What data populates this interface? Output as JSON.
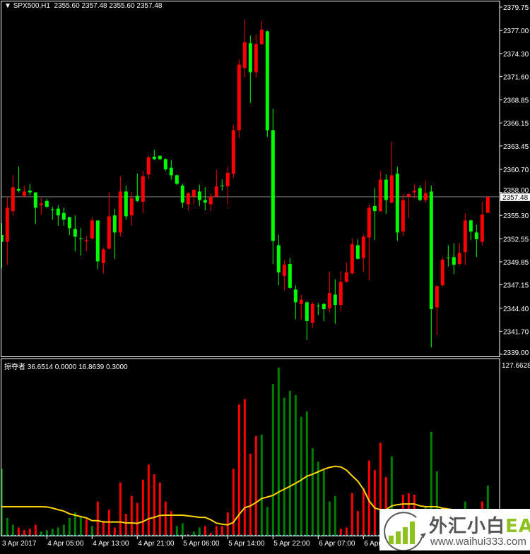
{
  "header": {
    "symbol": "SPX500,H1",
    "ohlc": "2355.60 2357.48 2355.60 2357.48"
  },
  "indicator_header": {
    "name": "掠夺者",
    "values": "36.6514 0.0000 16.8639 0.3000"
  },
  "colors": {
    "bull": "#ff0000",
    "bear": "#00ff00",
    "hist_red": "#ff0000",
    "hist_green": "#008000",
    "ma": "#ffd700",
    "level": "#40e0e0",
    "frame": "#ffffff",
    "bid_line": "#808080"
  },
  "price_axis": {
    "ticks": [
      "2379.75",
      "2377.00",
      "2374.30",
      "2371.60",
      "2368.85",
      "2366.15",
      "2363.45",
      "2360.70",
      "2358.00",
      "2355.30",
      "2352.55",
      "2349.85",
      "2347.15",
      "2344.40",
      "2341.70",
      "2339.00"
    ],
    "current_price": "2357.48",
    "range": [
      2339.0,
      2379.75
    ]
  },
  "indicator_axis": {
    "max_label": "127.6628",
    "range": [
      0,
      127.6628
    ],
    "level": 0.3
  },
  "time_axis": {
    "labels": [
      "3 Apr 2017",
      "4 Apr 05:00",
      "4 Apr 13:00",
      "4 Apr 21:00",
      "5 Apr 06:00",
      "5 Apr 14:00",
      "5 Apr 22:00",
      "6 Apr 07:00",
      "6 Apr"
    ],
    "label_every_bars": 8
  },
  "chart_data": {
    "type": "candlestick",
    "candles_ohlc": [
      [
        2353.0,
        2354.4,
        2349.1,
        2352.2
      ],
      [
        2352.2,
        2357.4,
        2349.5,
        2356.2
      ],
      [
        2355.8,
        2360.0,
        2355.3,
        2358.6
      ],
      [
        2358.4,
        2361.0,
        2358.0,
        2358.2
      ],
      [
        2357.6,
        2358.8,
        2357.4,
        2358.1
      ],
      [
        2358.2,
        2359.0,
        2357.7,
        2358.0
      ],
      [
        2358.0,
        2358.0,
        2354.3,
        2356.2
      ],
      [
        2356.5,
        2357.3,
        2355.4,
        2356.7
      ],
      [
        2357.0,
        2357.2,
        2356.2,
        2356.3
      ],
      [
        2356.0,
        2356.3,
        2354.8,
        2355.9
      ],
      [
        2356.1,
        2356.5,
        2354.1,
        2355.3
      ],
      [
        2355.6,
        2356.2,
        2354.1,
        2354.8
      ],
      [
        2355.1,
        2355.1,
        2353.0,
        2353.8
      ],
      [
        2353.7,
        2355.3,
        2351.1,
        2352.8
      ],
      [
        2352.6,
        2353.8,
        2350.6,
        2352.55
      ],
      [
        2352.3,
        2352.9,
        2351.1,
        2352.4
      ],
      [
        2352.6,
        2355.1,
        2352.5,
        2354.7
      ],
      [
        2354.7,
        2354.7,
        2349.0,
        2349.9
      ],
      [
        2349.7,
        2351.5,
        2348.5,
        2351.3
      ],
      [
        2351.4,
        2358.0,
        2351.3,
        2355.2
      ],
      [
        2355.3,
        2356.1,
        2350.2,
        2353.3
      ],
      [
        2353.3,
        2359.9,
        2352.8,
        2358.1
      ],
      [
        2358.1,
        2358.8,
        2354.8,
        2355.2
      ],
      [
        2355.3,
        2358.0,
        2354.1,
        2357.3
      ],
      [
        2357.6,
        2360.2,
        2356.9,
        2357.0
      ],
      [
        2356.9,
        2360.5,
        2355.6,
        2359.9
      ],
      [
        2360.1,
        2362.3,
        2359.6,
        2362.1
      ],
      [
        2362.2,
        2363.0,
        2361.8,
        2361.9
      ],
      [
        2362.3,
        2362.3,
        2361.8,
        2361.9
      ],
      [
        2361.9,
        2362.0,
        2360.5,
        2360.7
      ],
      [
        2360.9,
        2361.8,
        2359.5,
        2360.0
      ],
      [
        2360.0,
        2360.1,
        2358.9,
        2359.0
      ],
      [
        2358.8,
        2359.0,
        2356.2,
        2356.8
      ],
      [
        2356.6,
        2358.0,
        2355.9,
        2357.9
      ],
      [
        2357.5,
        2358.4,
        2356.6,
        2358.3
      ],
      [
        2358.1,
        2358.9,
        2356.4,
        2357.1
      ],
      [
        2357.1,
        2358.6,
        2355.9,
        2356.8
      ],
      [
        2356.6,
        2357.9,
        2355.8,
        2357.5
      ],
      [
        2357.5,
        2360.6,
        2357.4,
        2358.7
      ],
      [
        2358.8,
        2359.5,
        2358.2,
        2358.75
      ],
      [
        2358.7,
        2361.0,
        2356.6,
        2360.3
      ],
      [
        2360.2,
        2365.9,
        2359.7,
        2365.3
      ],
      [
        2365.3,
        2373.6,
        2364.4,
        2373.0
      ],
      [
        2372.6,
        2378.3,
        2371.5,
        2375.6
      ],
      [
        2375.5,
        2376.4,
        2368.5,
        2372.1
      ],
      [
        2372.1,
        2376.5,
        2371.5,
        2375.4
      ],
      [
        2375.4,
        2378.1,
        2375.3,
        2377.1
      ],
      [
        2376.9,
        2377.0,
        2364.5,
        2365.3
      ],
      [
        2365.3,
        2367.8,
        2349.6,
        2352.3
      ],
      [
        2351.8,
        2353.0,
        2347.1,
        2348.6
      ],
      [
        2348.2,
        2350.0,
        2346.5,
        2349.5
      ],
      [
        2349.6,
        2350.3,
        2346.7,
        2346.8
      ],
      [
        2346.6,
        2347.1,
        2343.1,
        2345.1
      ],
      [
        2344.9,
        2346.0,
        2343.1,
        2345.4
      ],
      [
        2345.1,
        2345.2,
        2340.7,
        2342.9
      ],
      [
        2342.7,
        2345.1,
        2342.1,
        2344.9
      ],
      [
        2344.7,
        2345.0,
        2343.6,
        2344.65
      ],
      [
        2344.9,
        2345.0,
        2342.9,
        2344.3
      ],
      [
        2344.4,
        2348.7,
        2343.9,
        2346.2
      ],
      [
        2346.0,
        2347.8,
        2342.6,
        2344.8
      ],
      [
        2344.8,
        2348.7,
        2344.1,
        2347.5
      ],
      [
        2347.5,
        2349.8,
        2347.4,
        2348.6
      ],
      [
        2348.5,
        2352.6,
        2348.4,
        2351.9
      ],
      [
        2351.8,
        2352.5,
        2350.1,
        2350.2
      ],
      [
        2350.3,
        2353.0,
        2348.7,
        2352.8
      ],
      [
        2352.7,
        2356.6,
        2347.7,
        2356.2
      ],
      [
        2356.4,
        2358.5,
        2352.4,
        2355.8
      ],
      [
        2355.8,
        2360.5,
        2355.7,
        2359.5
      ],
      [
        2359.5,
        2360.1,
        2355.5,
        2357.1
      ],
      [
        2356.8,
        2363.9,
        2356.7,
        2360.0
      ],
      [
        2360.2,
        2361.0,
        2352.3,
        2353.3
      ],
      [
        2353.4,
        2357.8,
        2352.9,
        2357.1
      ],
      [
        2357.5,
        2357.9,
        2355.0,
        2357.8
      ],
      [
        2358.0,
        2358.9,
        2357.3,
        2358.2
      ],
      [
        2358.5,
        2358.8,
        2357.0,
        2357.1
      ],
      [
        2357.1,
        2359.4,
        2356.8,
        2357.9
      ],
      [
        2358.1,
        2358.8,
        2339.8,
        2344.3
      ],
      [
        2344.5,
        2347.1,
        2341.3,
        2347.0
      ],
      [
        2347.1,
        2350.4,
        2347.0,
        2350.1
      ],
      [
        2350.35,
        2351.8,
        2349.3,
        2350.3
      ],
      [
        2350.4,
        2352.0,
        2348.4,
        2349.5
      ],
      [
        2349.6,
        2352.1,
        2349.4,
        2350.9
      ],
      [
        2351.0,
        2355.5,
        2349.5,
        2354.7
      ],
      [
        2354.7,
        2354.8,
        2352.4,
        2353.4
      ],
      [
        2353.3,
        2354.2,
        2350.4,
        2352.5
      ],
      [
        2352.2,
        2356.9,
        2351.8,
        2355.4
      ],
      [
        2355.6,
        2357.48,
        2355.6,
        2357.48
      ]
    ],
    "histogram": {
      "values": [
        49,
        13,
        8,
        6,
        4,
        5,
        8,
        3,
        4,
        5,
        6,
        8,
        13,
        17,
        14,
        12,
        7,
        25,
        11,
        19,
        6,
        39,
        16,
        29,
        24,
        41,
        52,
        45,
        39,
        25,
        18,
        7,
        9,
        1,
        3,
        6,
        7,
        2,
        7,
        7,
        17,
        49,
        96,
        100,
        60,
        73,
        74,
        21,
        111,
        123,
        101,
        106,
        103,
        87,
        91,
        64,
        54,
        48,
        25,
        29,
        5,
        6,
        31,
        18,
        35,
        55,
        48,
        68,
        43,
        58,
        12,
        30,
        31,
        30,
        8,
        21,
        76,
        47,
        20,
        10,
        10,
        9,
        25,
        10,
        9,
        25,
        36.6514
      ],
      "colors": "gggrrrrggggggggrgrrrrrrrrrrrrrrggrggrrrrrrrrrrggggggggggggggrrrrrrrrrgrrrrrgggggrrgrrr"
    },
    "ma_line": [
      21.2,
      21.2,
      21.2,
      21.2,
      21.2,
      21.2,
      21.2,
      21.2,
      21,
      20.2,
      19,
      18,
      16,
      15,
      14,
      13,
      11,
      11,
      10,
      10,
      10,
      10,
      9.3,
      9.3,
      9,
      10.3,
      12.4,
      13.4,
      14.8,
      15,
      15,
      15,
      15,
      14.5,
      14,
      13.4,
      13.4,
      11.6,
      9.2,
      8.4,
      7.9,
      9.7,
      15.5,
      20.4,
      21.8,
      24.3,
      27.2,
      28.3,
      29.5,
      32,
      34,
      36.1,
      38.4,
      40.8,
      43.5,
      45,
      46.8,
      48.6,
      50,
      50.8,
      50.3,
      48,
      43.8,
      39.9,
      34,
      25.5,
      20.2,
      19,
      19,
      21.8,
      22.7,
      23.2,
      23.2,
      23.2,
      21.8,
      21.2,
      21.2,
      21.2,
      20.1,
      19.5,
      19,
      18.5,
      18,
      17.6,
      17.3,
      17,
      16.8639
    ]
  },
  "watermark": {
    "title": "外汇小白",
    "title_accent": "EA网",
    "url": "www.waihui333.com"
  }
}
